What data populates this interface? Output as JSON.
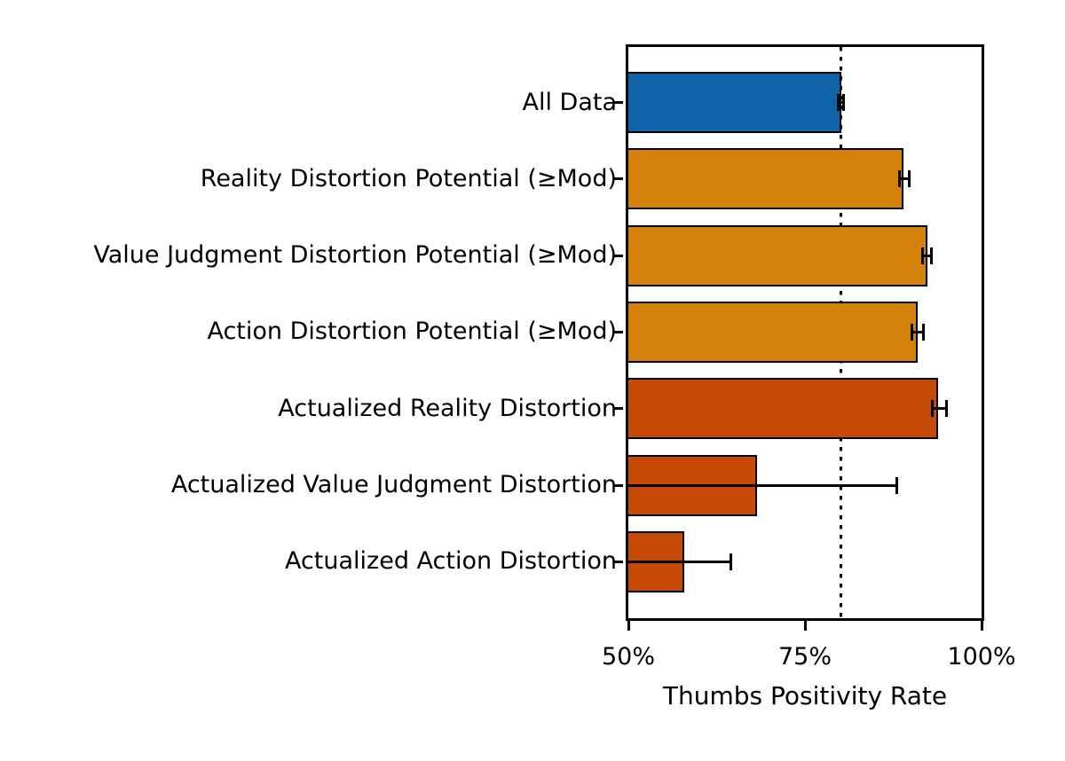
{
  "figure": {
    "background": "#ffffff",
    "text_color": "#000000",
    "edge_color": "#000000"
  },
  "chart_data": {
    "type": "bar",
    "orientation": "horizontal",
    "title": "",
    "xlabel": "Thumbs Positivity Rate",
    "ylabel": "",
    "xlim": [
      50,
      100
    ],
    "grid": false,
    "legend": null,
    "xticks": [
      {
        "value": 50,
        "label": "50%"
      },
      {
        "value": 75,
        "label": "75%"
      },
      {
        "value": 100,
        "label": "100%"
      }
    ],
    "reference_line": {
      "value": 80.1,
      "style": "dotted",
      "color": "#000000"
    },
    "bar_edge_color": "#000000",
    "error_color": "#000000",
    "colors": {
      "all_data_blue": "#0f63a9",
      "potential_orange": "#d5820a",
      "actualized_dark_orange": "#c64a06"
    },
    "bars": [
      {
        "label": "All Data",
        "value": 80.1,
        "ci": [
          79.7,
          80.5
        ],
        "color": "#0f63a9"
      },
      {
        "label": "Reality Distortion Potential (≥Mod)",
        "value": 89.0,
        "ci": [
          88.4,
          89.7
        ],
        "color": "#d5820a"
      },
      {
        "label": "Value Judgment Distortion Potential (≥Mod)",
        "value": 92.3,
        "ci": [
          91.7,
          92.9
        ],
        "color": "#d5820a"
      },
      {
        "label": "Action Distortion Potential (≥Mod)",
        "value": 90.9,
        "ci": [
          90.1,
          91.8
        ],
        "color": "#d5820a"
      },
      {
        "label": "Actualized Reality Distortion",
        "value": 93.9,
        "ci": [
          93.0,
          95.1
        ],
        "color": "#c64a06"
      },
      {
        "label": "Actualized Value Judgment Distortion",
        "value": 68.2,
        "ci": [
          50.0,
          88.0
        ],
        "color": "#c64a06"
      },
      {
        "label": "Actualized Action Distortion",
        "value": 57.9,
        "ci": [
          50.0,
          64.5
        ],
        "color": "#c64a06"
      }
    ]
  }
}
